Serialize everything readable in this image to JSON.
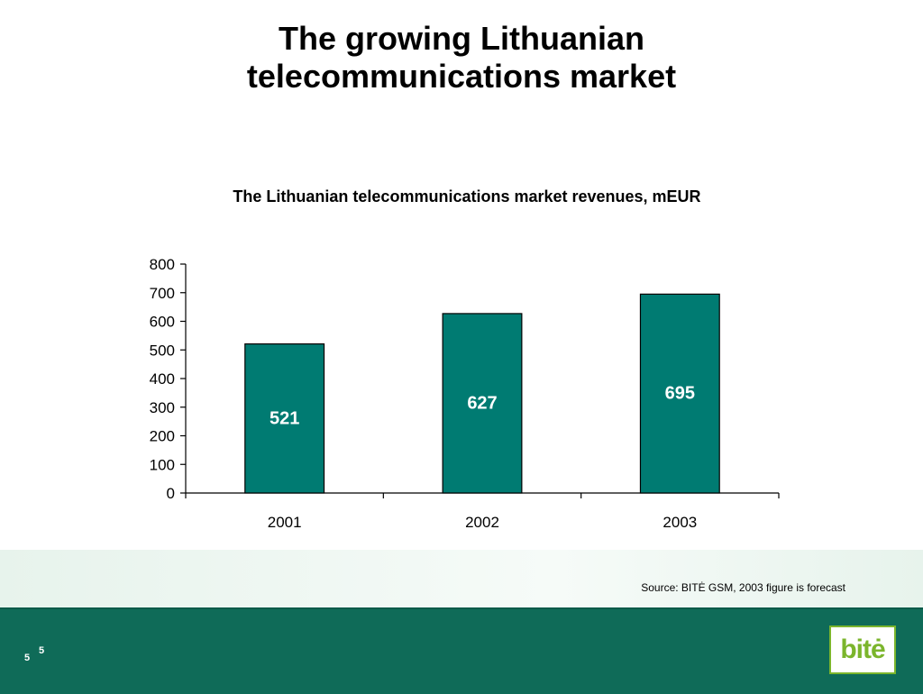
{
  "slide": {
    "title_line1": "The growing Lithuanian",
    "title_line2": "telecommunications market",
    "source": "Source: BITĖ GSM, 2003 figure is forecast",
    "page_number_main": "5",
    "page_number_sup": "5",
    "logo_text": "bitė"
  },
  "colors": {
    "bar": "#007b72",
    "footer": "#0f6b58",
    "logo_green": "#7bb52c"
  },
  "chart_data": {
    "type": "bar",
    "title": "The Lithuanian telecommunications market revenues, mEUR",
    "categories": [
      "2001",
      "2002",
      "2003"
    ],
    "values": [
      521,
      627,
      695
    ],
    "data_labels": [
      "521",
      "627",
      "695"
    ],
    "ylim": [
      0,
      800
    ],
    "yticks": [
      0,
      100,
      200,
      300,
      400,
      500,
      600,
      700,
      800
    ],
    "xlabel": "",
    "ylabel": "",
    "grid": false,
    "legend": "none"
  }
}
